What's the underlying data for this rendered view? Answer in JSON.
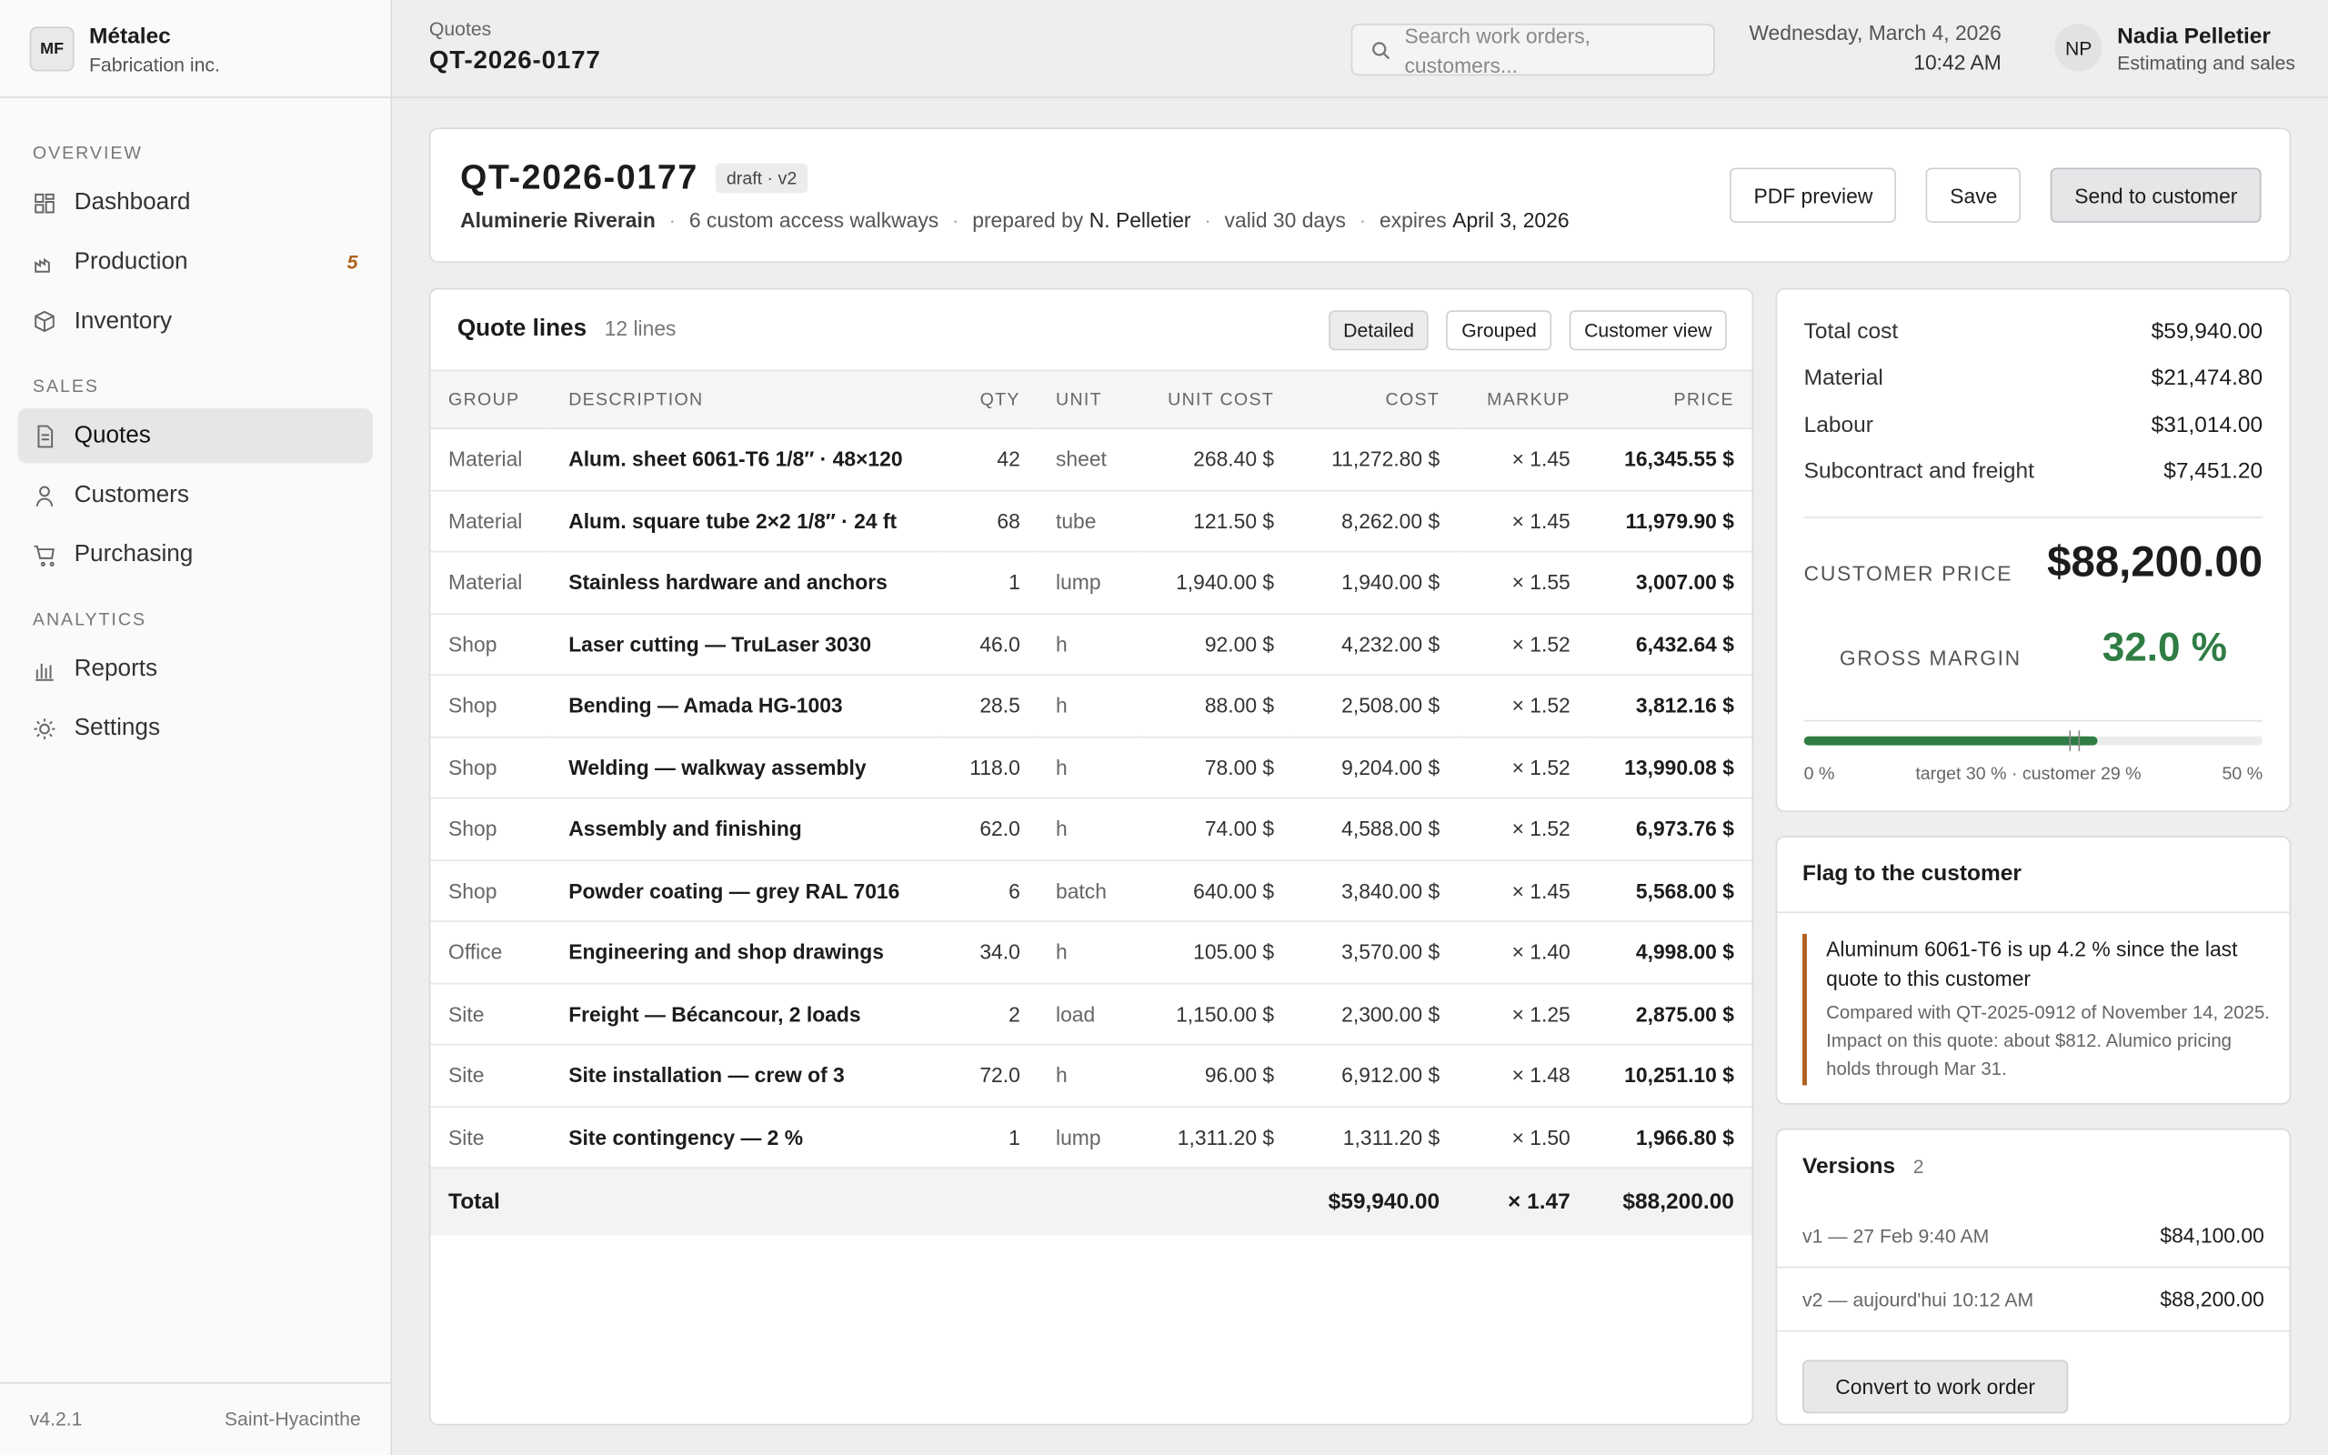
{
  "sidebar": {
    "logo": "MF",
    "company": "Métalec",
    "subtitle": "Fabrication inc.",
    "sections": [
      {
        "title": "OVERVIEW",
        "items": [
          {
            "label": "Dashboard"
          },
          {
            "label": "Production",
            "badge": "5"
          },
          {
            "label": "Inventory"
          }
        ]
      },
      {
        "title": "SALES",
        "items": [
          {
            "label": "Quotes",
            "active": true
          },
          {
            "label": "Customers"
          },
          {
            "label": "Purchasing"
          }
        ]
      },
      {
        "title": "ANALYTICS",
        "items": [
          {
            "label": "Reports"
          },
          {
            "label": "Settings"
          }
        ]
      }
    ],
    "version": "v4.2.1",
    "location": "Saint-Hyacinthe"
  },
  "topbar": {
    "breadcrumb": "Quotes",
    "title": "QT-2026-0177",
    "search_placeholder": "Search work orders, customers...",
    "date": "Wednesday, March 4, 2026",
    "time": "10:42 AM",
    "user_initials": "NP",
    "user_name": "Nadia Pelletier",
    "user_role": "Estimating and sales"
  },
  "header": {
    "title": "QT-2026-0177",
    "status": "draft · v2",
    "customer": "Aluminerie Riverain",
    "description": "6 custom access walkways",
    "prepared_label": "prepared by",
    "prepared_by": "N. Pelletier",
    "validity": "valid 30 days",
    "expires_label": "expires",
    "expires": "April 3, 2026",
    "actions": [
      "PDF preview",
      "Save",
      "Send to customer"
    ]
  },
  "lines": {
    "title": "Quote lines",
    "count": "12 lines",
    "views": [
      "Detailed",
      "Grouped",
      "Customer view"
    ],
    "columns": [
      "GROUP",
      "DESCRIPTION",
      "QTY",
      "UNIT",
      "UNIT COST",
      "COST",
      "MARKUP",
      "PRICE"
    ],
    "rows": [
      [
        "Material",
        "Alum. sheet 6061-T6 1/8″ · 48×120",
        "42",
        "sheet",
        "268.40 $",
        "11,272.80 $",
        "× 1.45",
        "16,345.55 $"
      ],
      [
        "Material",
        "Alum. square tube 2×2 1/8″ · 24 ft",
        "68",
        "tube",
        "121.50 $",
        "8,262.00 $",
        "× 1.45",
        "11,979.90 $"
      ],
      [
        "Material",
        "Stainless hardware and anchors",
        "1",
        "lump",
        "1,940.00 $",
        "1,940.00 $",
        "× 1.55",
        "3,007.00 $"
      ],
      [
        "Shop",
        "Laser cutting — TruLaser 3030",
        "46.0",
        "h",
        "92.00 $",
        "4,232.00 $",
        "× 1.52",
        "6,432.64 $"
      ],
      [
        "Shop",
        "Bending — Amada HG-1003",
        "28.5",
        "h",
        "88.00 $",
        "2,508.00 $",
        "× 1.52",
        "3,812.16 $"
      ],
      [
        "Shop",
        "Welding — walkway assembly",
        "118.0",
        "h",
        "78.00 $",
        "9,204.00 $",
        "× 1.52",
        "13,990.08 $"
      ],
      [
        "Shop",
        "Assembly and finishing",
        "62.0",
        "h",
        "74.00 $",
        "4,588.00 $",
        "× 1.52",
        "6,973.76 $"
      ],
      [
        "Shop",
        "Powder coating — grey RAL 7016",
        "6",
        "batch",
        "640.00 $",
        "3,840.00 $",
        "× 1.45",
        "5,568.00 $"
      ],
      [
        "Office",
        "Engineering and shop drawings",
        "34.0",
        "h",
        "105.00 $",
        "3,570.00 $",
        "× 1.40",
        "4,998.00 $"
      ],
      [
        "Site",
        "Freight — Bécancour, 2 loads",
        "2",
        "load",
        "1,150.00 $",
        "2,300.00 $",
        "× 1.25",
        "2,875.00 $"
      ],
      [
        "Site",
        "Site installation — crew of 3",
        "72.0",
        "h",
        "96.00 $",
        "6,912.00 $",
        "× 1.48",
        "10,251.10 $"
      ],
      [
        "Site",
        "Site contingency — 2 %",
        "1",
        "lump",
        "1,311.20 $",
        "1,311.20 $",
        "× 1.50",
        "1,966.80 $"
      ]
    ],
    "total": [
      "Total",
      "$59,940.00",
      "× 1.47",
      "$88,200.00"
    ]
  },
  "summary": {
    "rows": [
      [
        "Total cost",
        "$59,940.00"
      ],
      [
        "Material",
        "$21,474.80"
      ],
      [
        "Labour",
        "$31,014.00"
      ],
      [
        "Subcontract and freight",
        "$7,451.20"
      ]
    ],
    "price_label": "CUSTOMER PRICE",
    "price": "$88,200.00",
    "margin_label": "GROSS MARGIN",
    "margin": "32.0 %",
    "margin_bar": {
      "min": 0,
      "max": 50,
      "value": 32,
      "target": 30,
      "customer": 29
    },
    "scale_labels": [
      "0 %",
      "target 30 % · customer 29 %",
      "50 %"
    ]
  },
  "flag": {
    "title": "Flag to the customer",
    "headline": "Aluminum 6061-T6 is up 4.2 % since the last quote to this customer",
    "body": "Compared with QT-2025-0912 of November 14, 2025. Impact on this quote: about $812. Alumico pricing holds through Mar 31."
  },
  "versions": {
    "title": "Versions",
    "count": "2",
    "items": [
      {
        "label": "v1 — 27 Feb 9:40 AM",
        "amount": "$84,100.00"
      },
      {
        "label": "v2 — aujourd'hui 10:12 AM",
        "amount": "$88,200.00"
      }
    ],
    "action": "Convert to work order"
  }
}
